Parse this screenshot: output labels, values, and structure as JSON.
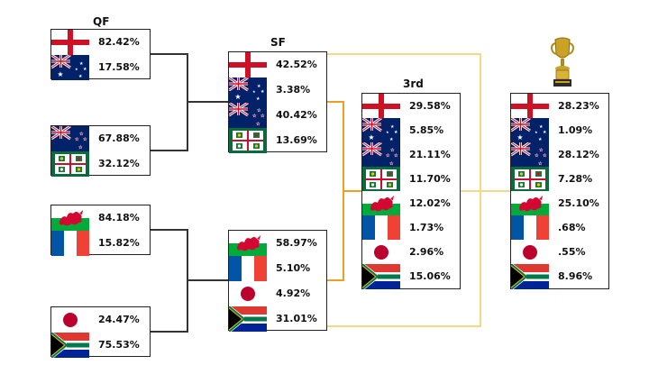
{
  "headers": {
    "qf": "QF",
    "sf": "SF",
    "third": "3rd"
  },
  "colors": {
    "third_line": "#f0a020",
    "final_line": "#f3d885",
    "bracket_line": "#333333"
  },
  "qf": [
    {
      "rows": [
        {
          "team": "england",
          "pct": "82.42%"
        },
        {
          "team": "australia",
          "pct": "17.58%"
        }
      ]
    },
    {
      "rows": [
        {
          "team": "new-zealand",
          "pct": "67.88%"
        },
        {
          "team": "ireland",
          "pct": "32.12%"
        }
      ]
    },
    {
      "rows": [
        {
          "team": "wales",
          "pct": "84.18%"
        },
        {
          "team": "france",
          "pct": "15.82%"
        }
      ]
    },
    {
      "rows": [
        {
          "team": "japan",
          "pct": "24.47%"
        },
        {
          "team": "south-africa",
          "pct": "75.53%"
        }
      ]
    }
  ],
  "sf": [
    {
      "rows": [
        {
          "team": "england",
          "pct": "42.52%"
        },
        {
          "team": "australia",
          "pct": "3.38%"
        },
        {
          "team": "new-zealand",
          "pct": "40.42%"
        },
        {
          "team": "ireland",
          "pct": "13.69%"
        }
      ]
    },
    {
      "rows": [
        {
          "team": "wales",
          "pct": "58.97%"
        },
        {
          "team": "france",
          "pct": "5.10%"
        },
        {
          "team": "japan",
          "pct": "4.92%"
        },
        {
          "team": "south-africa",
          "pct": "31.01%"
        }
      ]
    }
  ],
  "third": {
    "rows": [
      {
        "team": "england",
        "pct": "29.58%"
      },
      {
        "team": "australia",
        "pct": "5.85%"
      },
      {
        "team": "new-zealand",
        "pct": "21.11%"
      },
      {
        "team": "ireland",
        "pct": "11.70%"
      },
      {
        "team": "wales",
        "pct": "12.02%"
      },
      {
        "team": "france",
        "pct": "1.73%"
      },
      {
        "team": "japan",
        "pct": "2.96%"
      },
      {
        "team": "south-africa",
        "pct": "15.06%"
      }
    ]
  },
  "final": {
    "trophy": "trophy-icon",
    "rows": [
      {
        "team": "england",
        "pct": "28.23%"
      },
      {
        "team": "australia",
        "pct": "1.09%"
      },
      {
        "team": "new-zealand",
        "pct": "28.12%"
      },
      {
        "team": "ireland",
        "pct": "7.28%"
      },
      {
        "team": "wales",
        "pct": "25.10%"
      },
      {
        "team": "france",
        "pct": ".68%"
      },
      {
        "team": "japan",
        "pct": ".55%"
      },
      {
        "team": "south-africa",
        "pct": "8.96%"
      }
    ]
  }
}
